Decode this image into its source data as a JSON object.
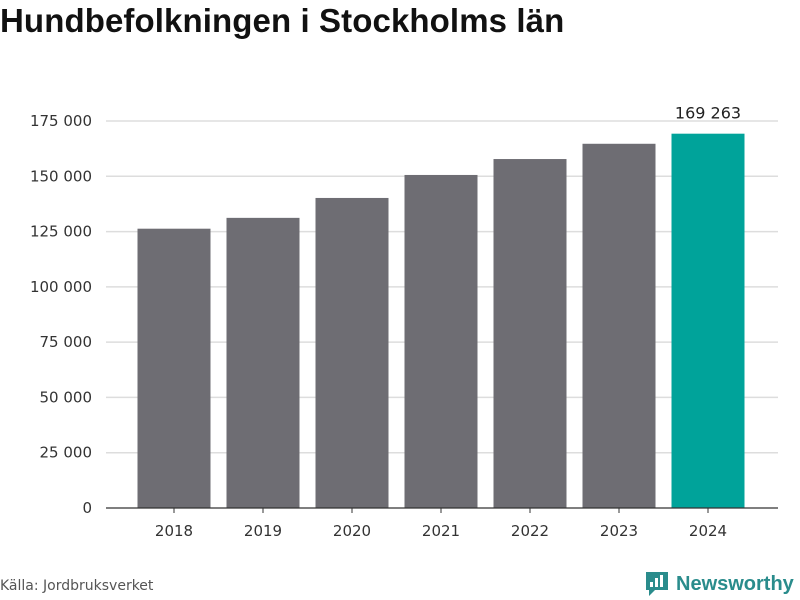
{
  "title": "Hundbefolkningen i Stockholms län",
  "source": "Källa: Jordbruksverket",
  "brand": {
    "name": "Newsworthy",
    "icon": "newsworthy-logo-icon"
  },
  "colors": {
    "bar": "#6e6d73",
    "highlight": "#00a39a",
    "grid": "#dddddd",
    "axis": "#333333",
    "brand": "#2a8c8c"
  },
  "chart_data": {
    "type": "bar",
    "title": "Hundbefolkningen i Stockholms län",
    "xlabel": "",
    "ylabel": "",
    "categories": [
      "2018",
      "2019",
      "2020",
      "2021",
      "2022",
      "2023",
      "2024"
    ],
    "values": [
      126300,
      131200,
      140200,
      150600,
      157800,
      164700,
      169263
    ],
    "highlight_index": 6,
    "data_labels": [
      {
        "index": 6,
        "text": "169 263"
      }
    ],
    "ylim": [
      0,
      175000
    ],
    "yticks": [
      0,
      25000,
      50000,
      75000,
      100000,
      125000,
      150000,
      175000
    ],
    "ytick_labels": [
      "0",
      "25 000",
      "50 000",
      "75 000",
      "100 000",
      "125 000",
      "150 000",
      "175 000"
    ],
    "grid": true,
    "legend": "none"
  }
}
